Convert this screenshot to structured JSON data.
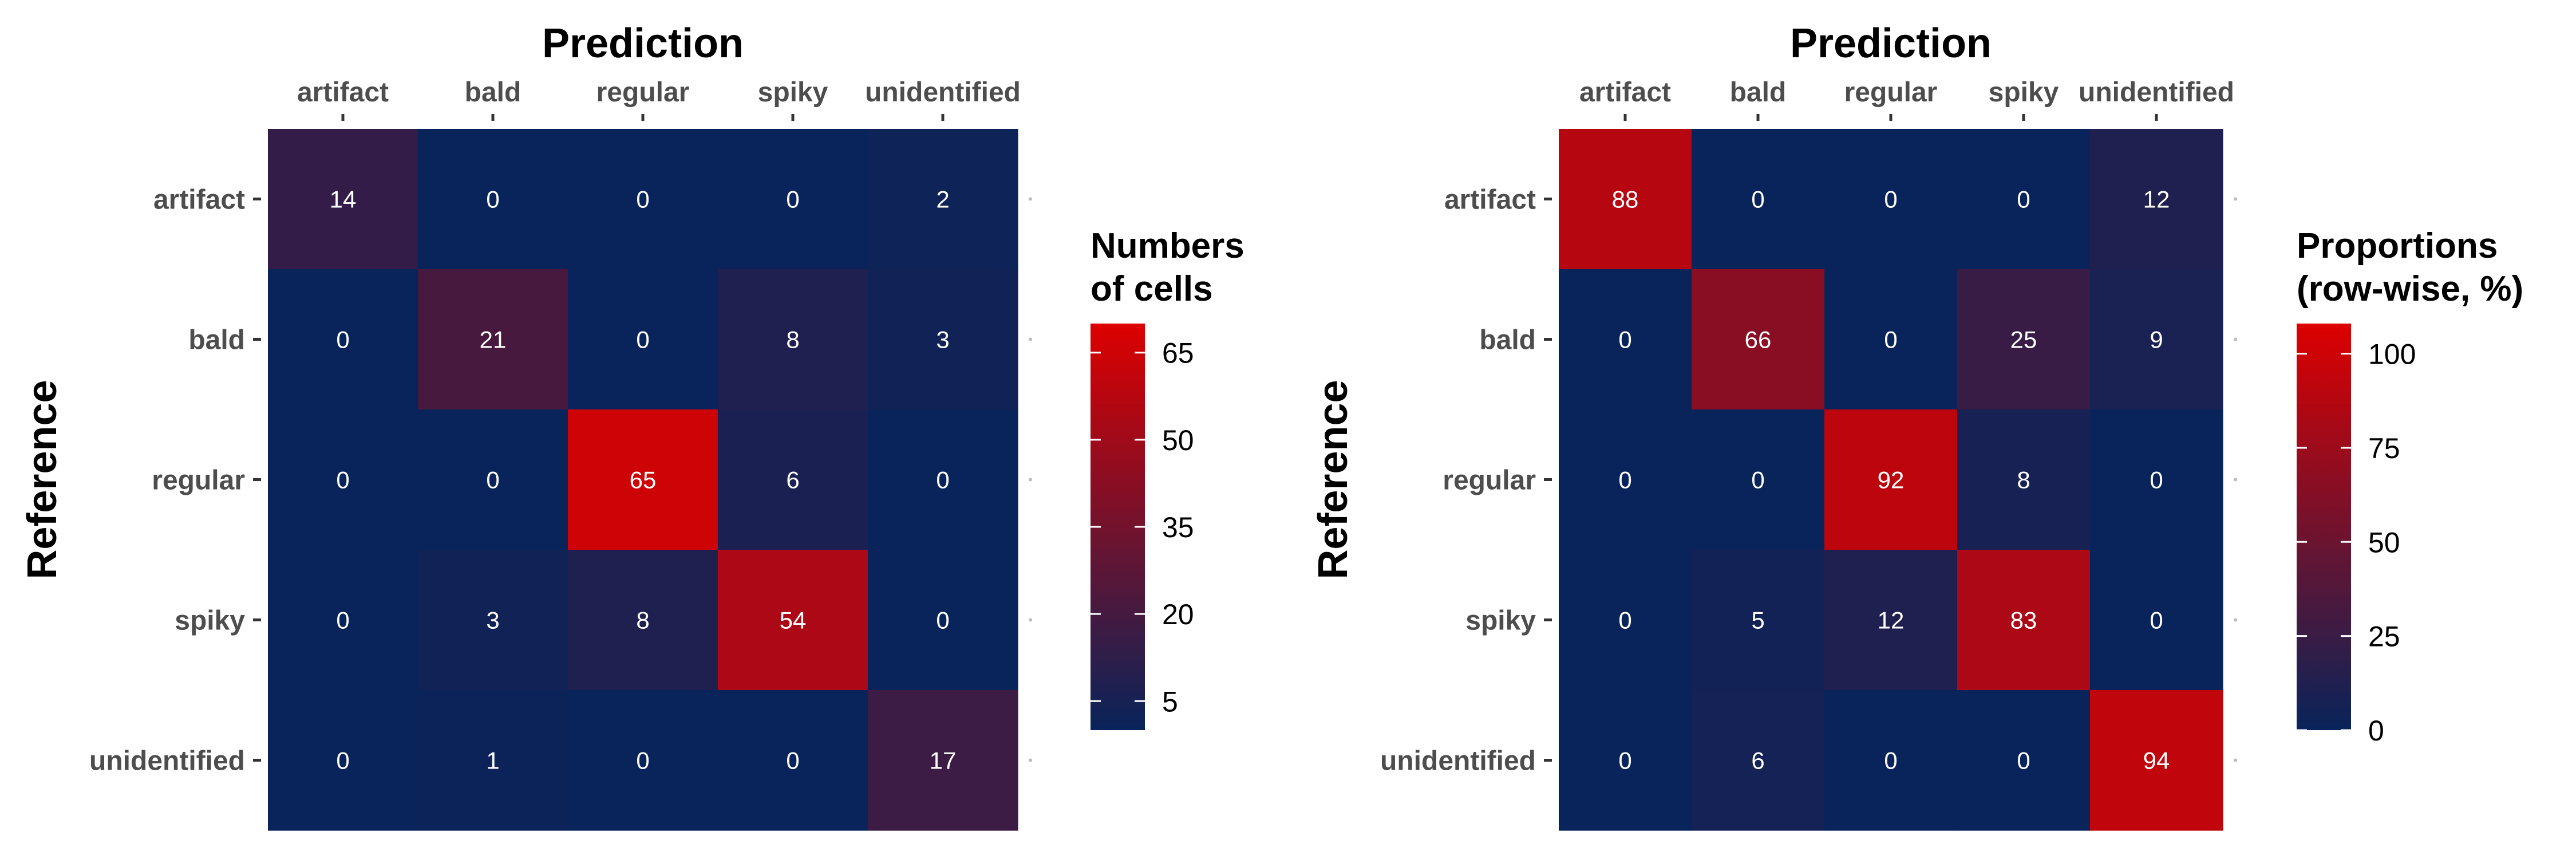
{
  "chart_data": [
    {
      "type": "heatmap",
      "xlabel": "Prediction",
      "ylabel": "Reference",
      "x_categories": [
        "artifact",
        "bald",
        "regular",
        "spiky",
        "unidentified"
      ],
      "y_categories": [
        "artifact",
        "bald",
        "regular",
        "spiky",
        "unidentified"
      ],
      "values": [
        [
          14,
          0,
          0,
          0,
          2
        ],
        [
          0,
          21,
          0,
          8,
          3
        ],
        [
          0,
          0,
          65,
          6,
          0
        ],
        [
          0,
          3,
          8,
          54,
          0
        ],
        [
          0,
          1,
          0,
          0,
          17
        ]
      ],
      "legend_title": [
        "Numbers",
        "of cells"
      ],
      "legend_ticks": [
        5,
        20,
        35,
        50,
        65
      ],
      "color_range": [
        0,
        70
      ],
      "low_color": "#08245a",
      "high_color": "#dd0000",
      "legend_position": "right"
    },
    {
      "type": "heatmap",
      "xlabel": "Prediction",
      "ylabel": "Reference",
      "x_categories": [
        "artifact",
        "bald",
        "regular",
        "spiky",
        "unidentified"
      ],
      "y_categories": [
        "artifact",
        "bald",
        "regular",
        "spiky",
        "unidentified"
      ],
      "values": [
        [
          88,
          0,
          0,
          0,
          12
        ],
        [
          0,
          66,
          0,
          25,
          9
        ],
        [
          0,
          0,
          92,
          8,
          0
        ],
        [
          0,
          5,
          12,
          83,
          0
        ],
        [
          0,
          6,
          0,
          0,
          94
        ]
      ],
      "legend_title": [
        "Proportions",
        "(row-wise, %)"
      ],
      "legend_ticks": [
        0,
        25,
        50,
        75,
        100
      ],
      "color_range": [
        0,
        108
      ],
      "low_color": "#08245a",
      "high_color": "#dd0000",
      "legend_position": "right"
    }
  ]
}
